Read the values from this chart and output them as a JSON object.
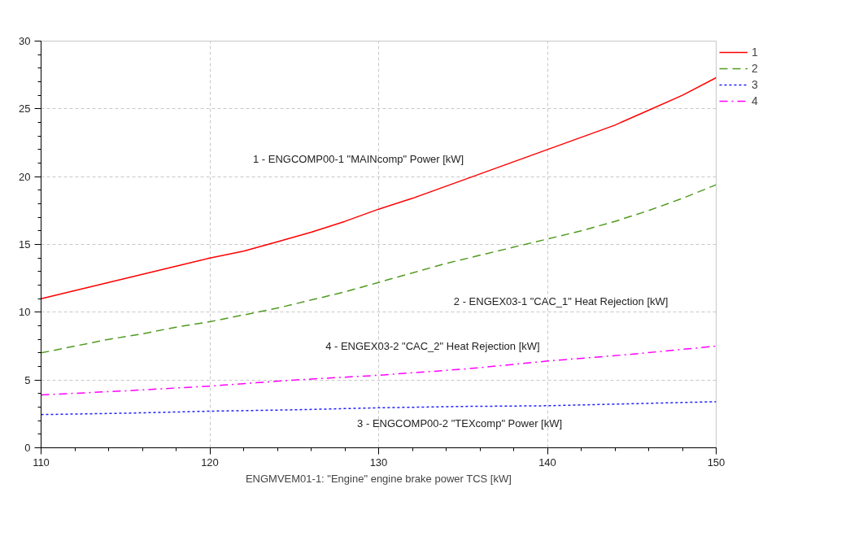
{
  "chart_data": {
    "type": "line",
    "xlabel": "ENGMVEM01-1: \"Engine\" engine brake power TCS [kW]",
    "xlim": [
      110,
      150
    ],
    "xticks": [
      110,
      120,
      130,
      140,
      150
    ],
    "ylim": [
      0,
      30
    ],
    "yticks": [
      0,
      5,
      10,
      15,
      20,
      25,
      30
    ],
    "grid": true,
    "legend": "right",
    "marker": "none",
    "series": [
      {
        "name": "1",
        "color": "#ff0000",
        "line_style": "solid",
        "x": [
          110,
          112,
          114,
          116,
          118,
          120,
          122,
          124,
          126,
          128,
          130,
          132,
          134,
          136,
          138,
          140,
          142,
          144,
          146,
          148,
          150
        ],
        "values": [
          11.0,
          11.6,
          12.2,
          12.8,
          13.4,
          14.0,
          14.5,
          15.2,
          15.9,
          16.7,
          17.6,
          18.4,
          19.3,
          20.2,
          21.1,
          22.0,
          22.9,
          23.8,
          24.9,
          26.0,
          27.3
        ]
      },
      {
        "name": "2",
        "color": "#4f9a1e",
        "line_style": "dashed",
        "x": [
          110,
          112,
          114,
          116,
          118,
          120,
          122,
          124,
          126,
          128,
          130,
          132,
          134,
          136,
          138,
          140,
          142,
          144,
          146,
          148,
          150
        ],
        "values": [
          7.0,
          7.5,
          8.0,
          8.4,
          8.9,
          9.3,
          9.8,
          10.3,
          10.9,
          11.5,
          12.2,
          12.9,
          13.6,
          14.2,
          14.8,
          15.4,
          16.0,
          16.7,
          17.5,
          18.4,
          19.4
        ]
      },
      {
        "name": "3",
        "color": "#1f1fff",
        "line_style": "dotted",
        "x": [
          110,
          115,
          120,
          125,
          130,
          135,
          140,
          145,
          150
        ],
        "values": [
          2.45,
          2.55,
          2.7,
          2.8,
          2.95,
          3.05,
          3.1,
          3.25,
          3.4
        ]
      },
      {
        "name": "4",
        "color": "#ff00ff",
        "line_style": "dashdot",
        "x": [
          110,
          115,
          120,
          125,
          130,
          135,
          138,
          140,
          145,
          150
        ],
        "values": [
          3.9,
          4.2,
          4.55,
          5.0,
          5.35,
          5.8,
          6.15,
          6.4,
          6.9,
          7.5
        ]
      }
    ],
    "annotations": [
      "1 - ENGCOMP00-1 \"MAINcomp\" Power [kW]",
      "2 - ENGEX03-1 \"CAC_1\" Heat Rejection [kW]",
      "4 - ENGEX03-2 \"CAC_2\" Heat Rejection [kW]",
      "3 - ENGCOMP00-2 \"TEXcomp\" Power [kW]"
    ]
  }
}
